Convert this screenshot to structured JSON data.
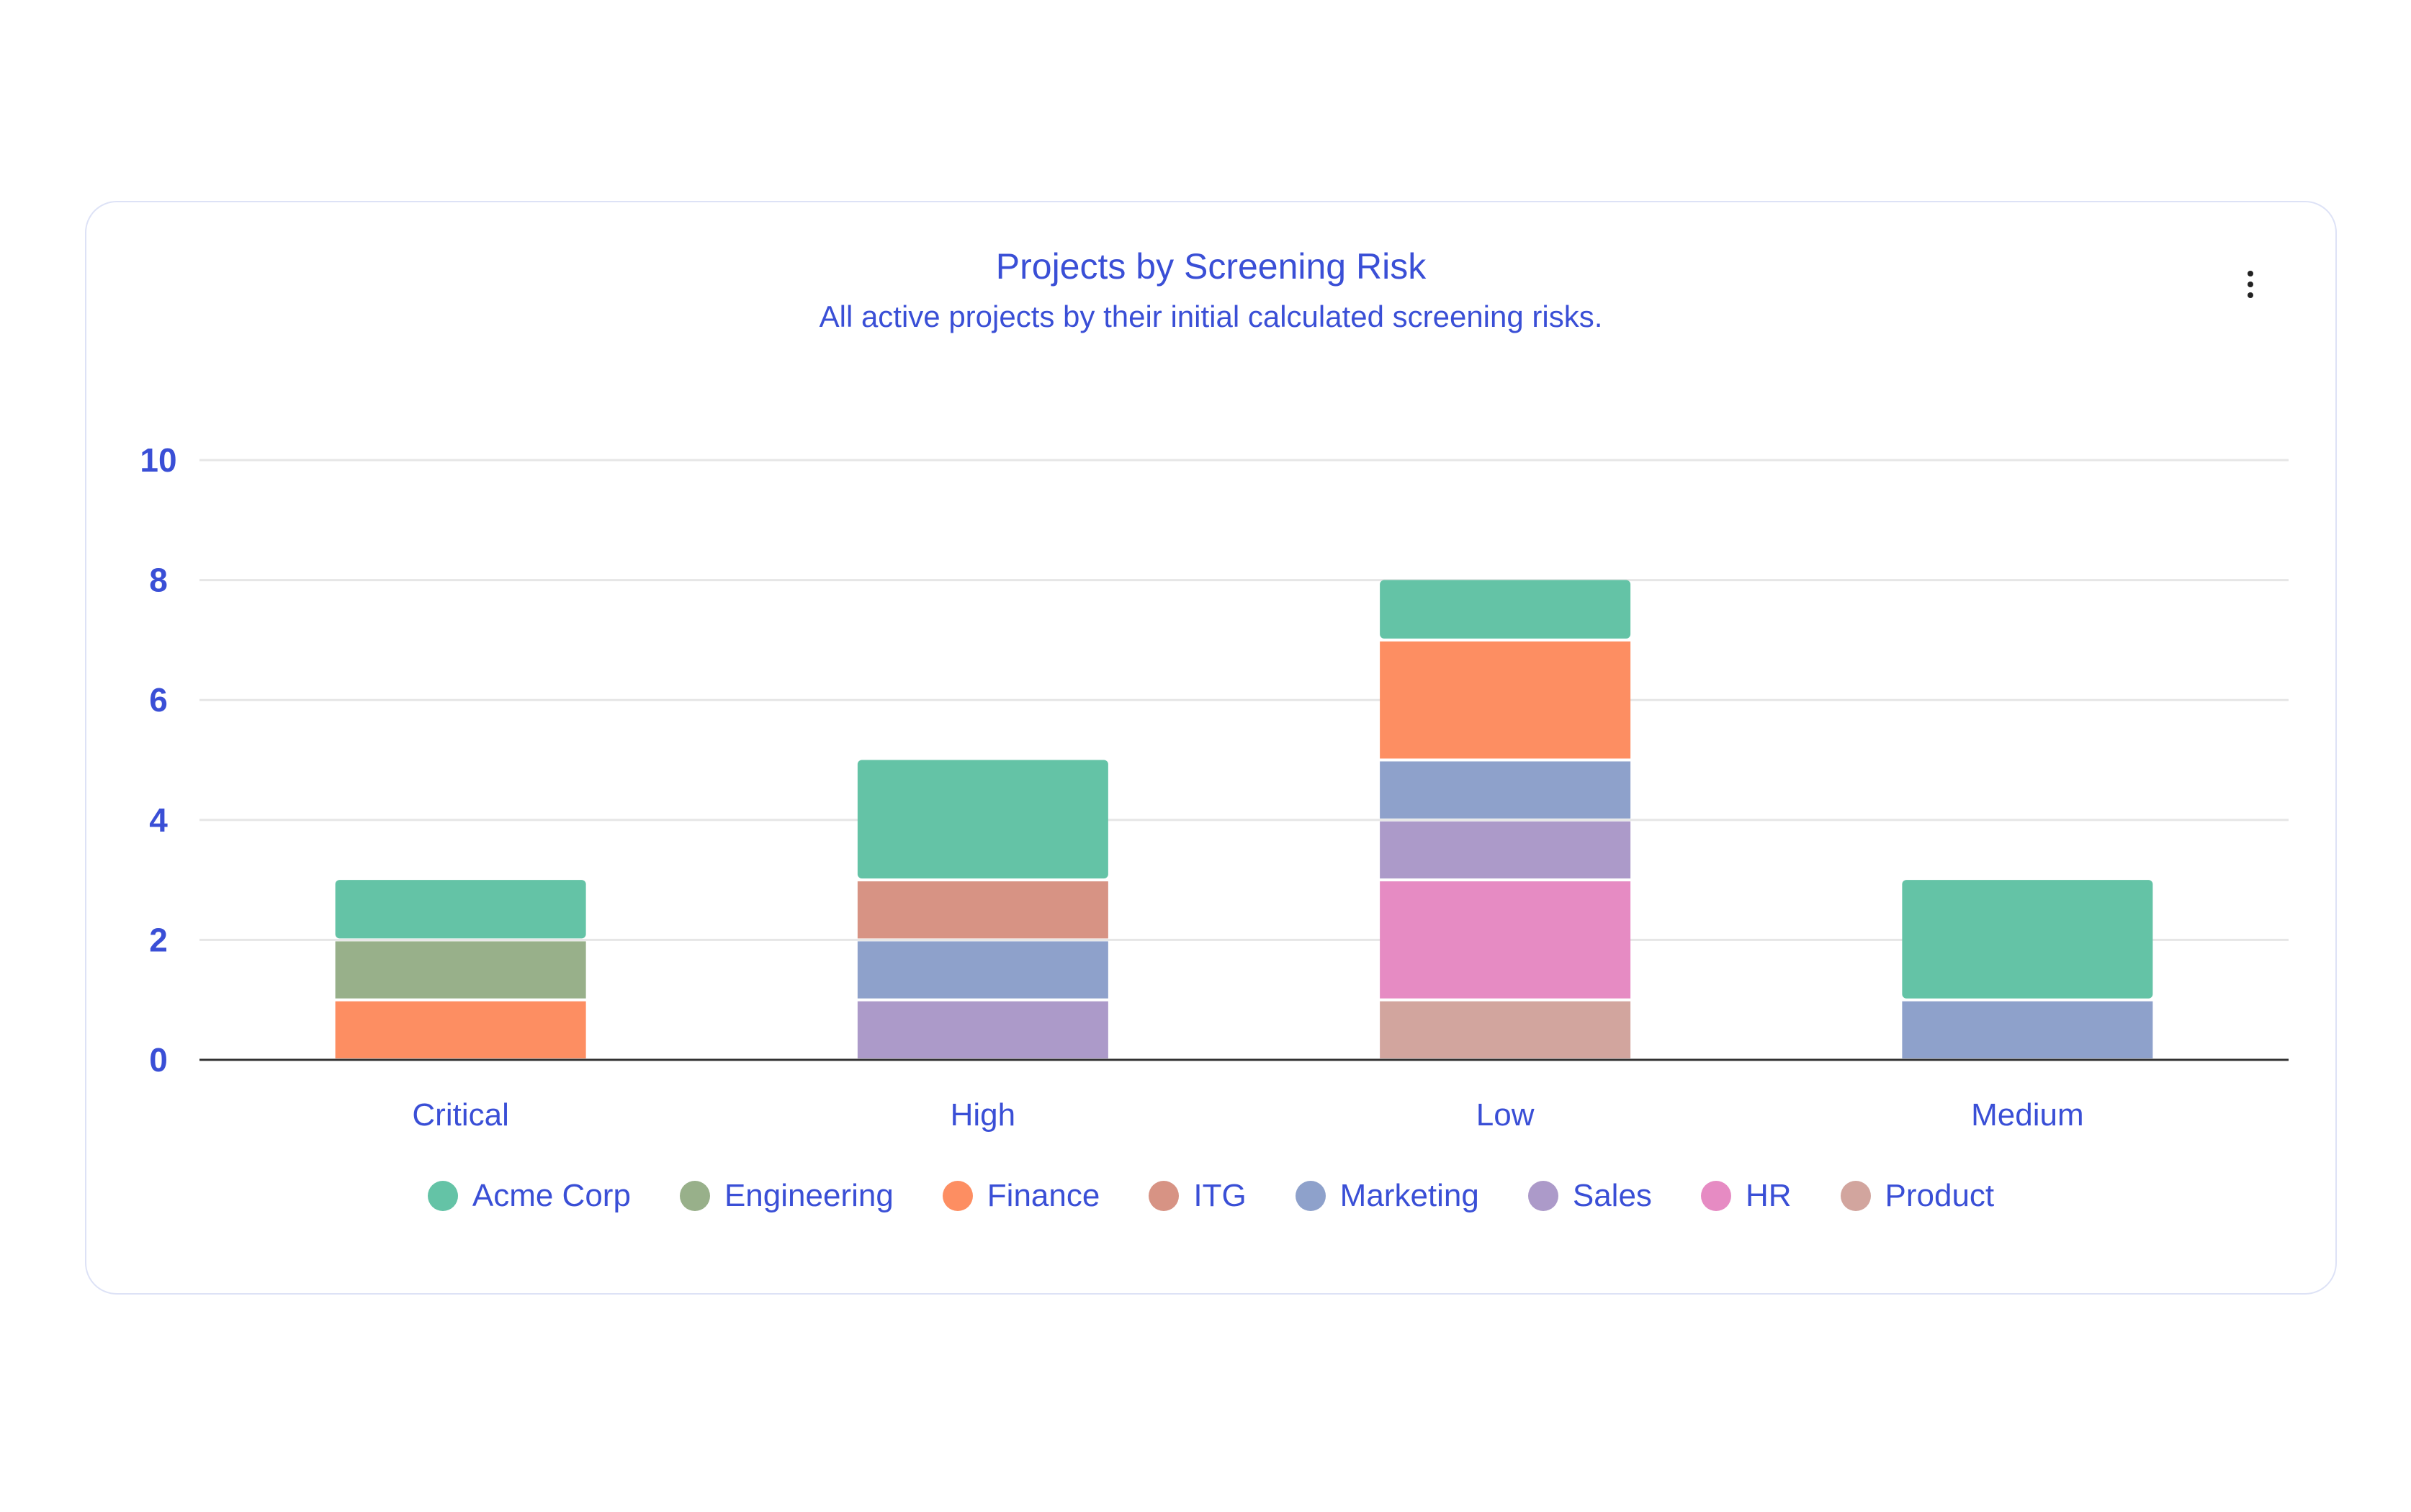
{
  "header": {
    "title": "Projects by Screening Risk",
    "subtitle": "All active projects by their initial calculated screening risks.",
    "menu_icon": "more-vertical-icon"
  },
  "chart_data": {
    "type": "bar",
    "stacked": true,
    "title": "Projects by Screening Risk",
    "subtitle": "All active projects by their initial calculated screening risks.",
    "xlabel": "",
    "ylabel": "",
    "categories": [
      "Critical",
      "High",
      "Low",
      "Medium"
    ],
    "ylim": [
      0,
      10
    ],
    "yticks": [
      0,
      2,
      4,
      6,
      8,
      10
    ],
    "grid": true,
    "legend_position": "bottom",
    "series": [
      {
        "name": "Acme Corp",
        "color": "#64c3a6",
        "values": [
          1,
          2,
          1,
          2
        ]
      },
      {
        "name": "Engineering",
        "color": "#98b08a",
        "values": [
          1,
          0,
          0,
          0
        ]
      },
      {
        "name": "Finance",
        "color": "#fd8e62",
        "values": [
          1,
          0,
          2,
          0
        ]
      },
      {
        "name": "ITG",
        "color": "#d79384",
        "values": [
          0,
          1,
          0,
          0
        ]
      },
      {
        "name": "Marketing",
        "color": "#8ea1cb",
        "values": [
          0,
          1,
          1,
          1
        ]
      },
      {
        "name": "Sales",
        "color": "#ac9ac9",
        "values": [
          0,
          1,
          1,
          0
        ]
      },
      {
        "name": "HR",
        "color": "#e68bc3",
        "values": [
          0,
          0,
          2,
          0
        ]
      },
      {
        "name": "Product",
        "color": "#d2a59e",
        "values": [
          0,
          0,
          1,
          0
        ]
      }
    ]
  }
}
